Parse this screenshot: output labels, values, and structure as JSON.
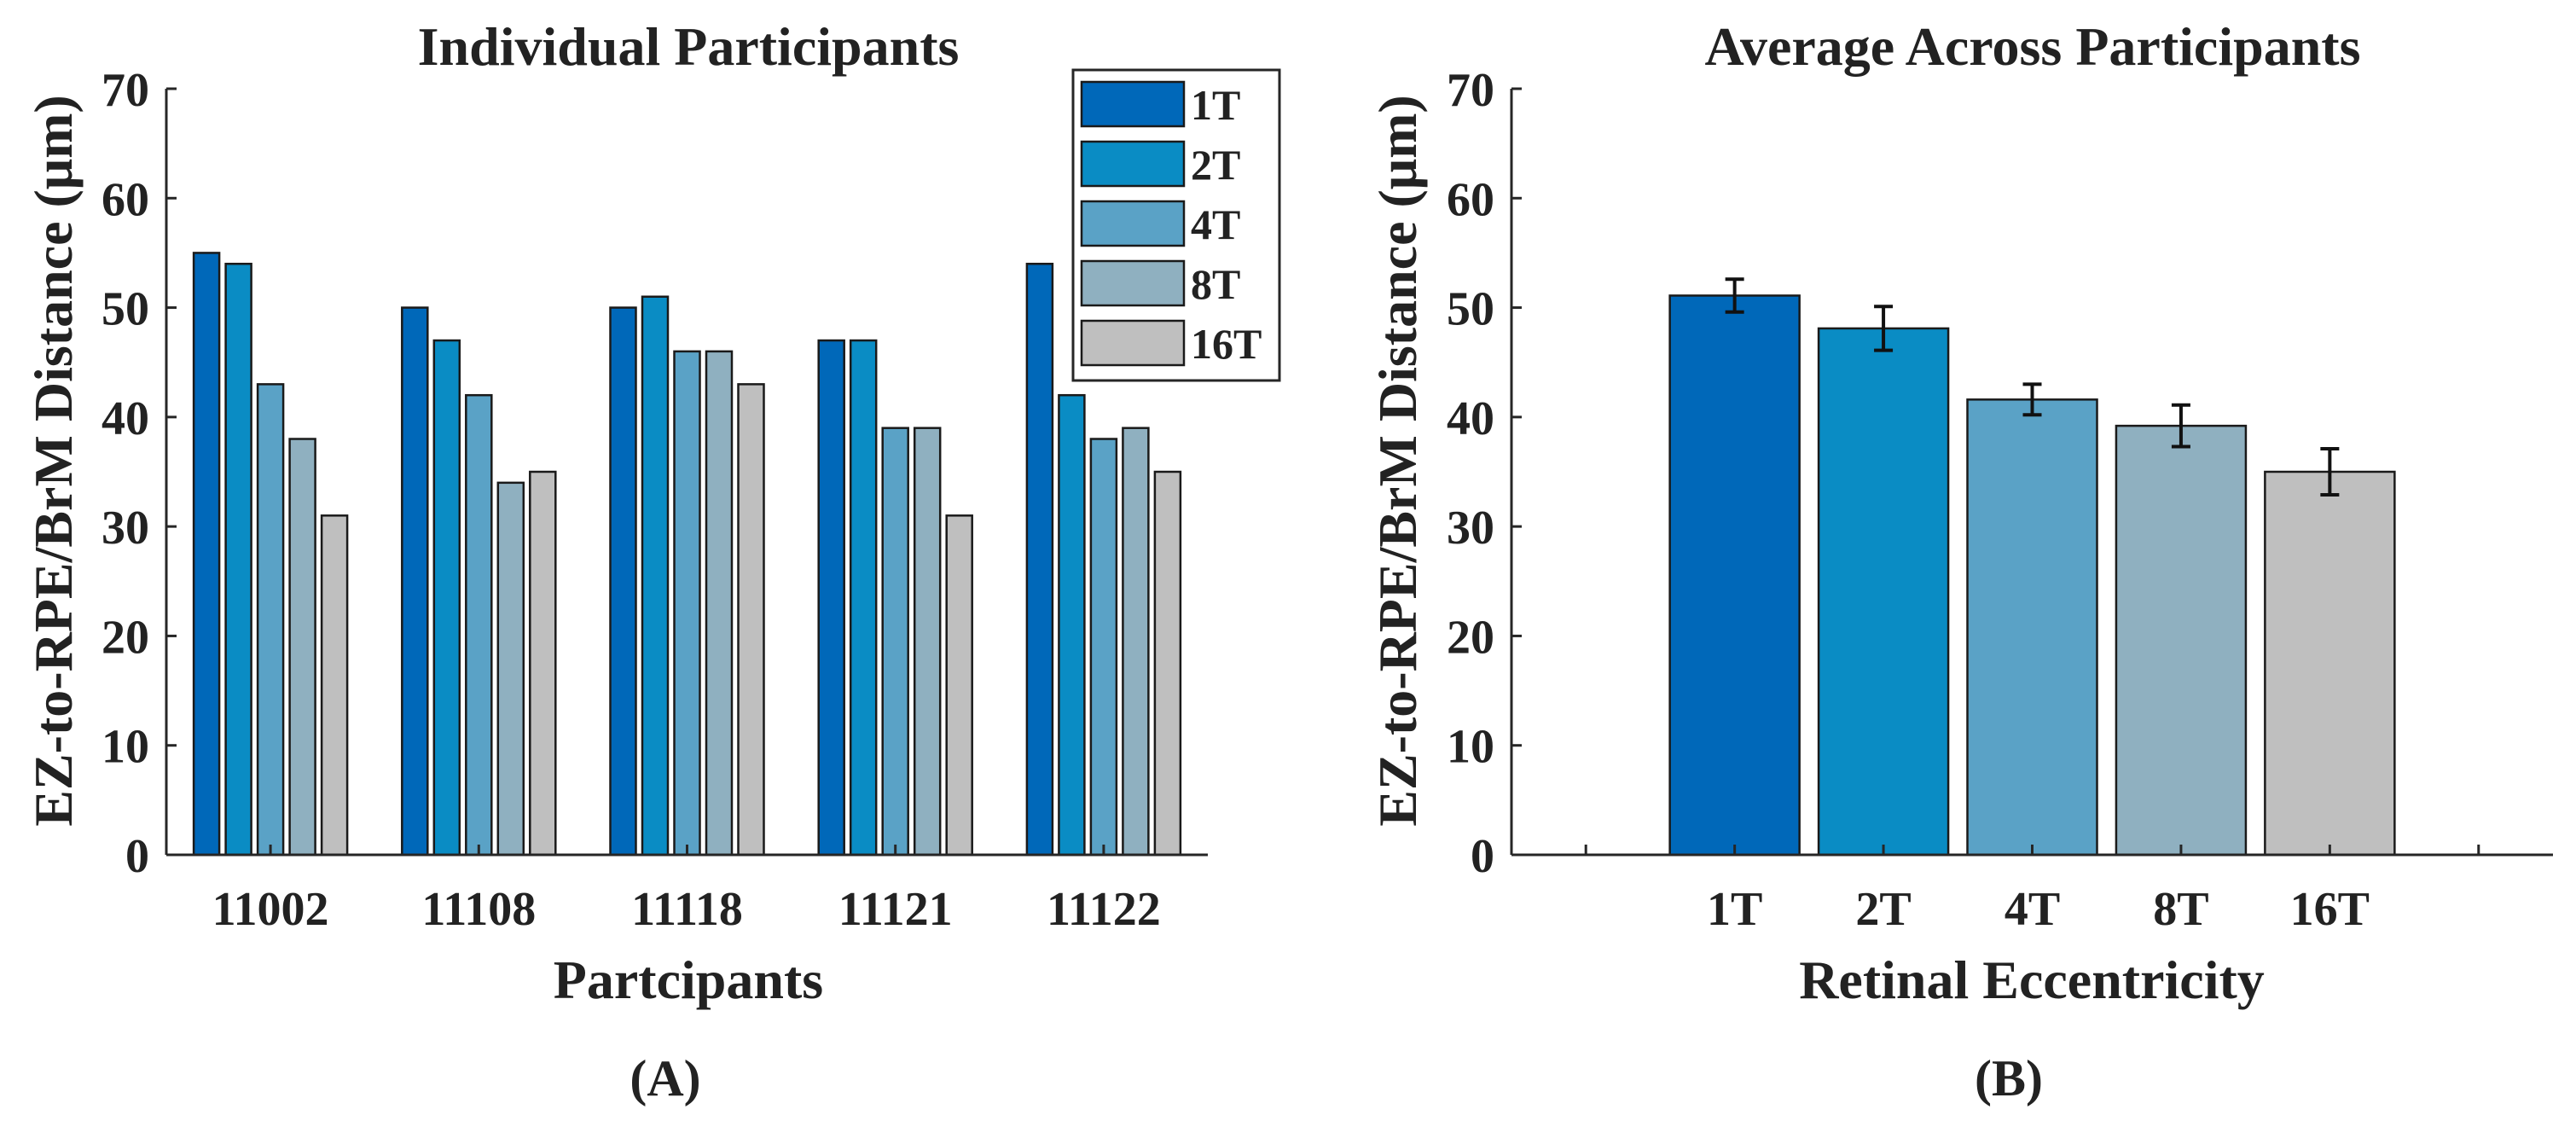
{
  "chart_data": [
    {
      "type": "bar",
      "panel_label": "(A)",
      "title": "Individual Participants",
      "xlabel": "Partcipants",
      "ylabel": "EZ-to-RPE/BrM Distance (μm)",
      "ylim": [
        0,
        70
      ],
      "yticks": [
        "0",
        "10",
        "20",
        "30",
        "40",
        "50",
        "60",
        "70"
      ],
      "categories": [
        "11002",
        "11108",
        "11118",
        "11121",
        "11122"
      ],
      "series": [
        {
          "name": "1T",
          "color": "#0068B9",
          "values": [
            55,
            50,
            50,
            47,
            54
          ]
        },
        {
          "name": "2T",
          "color": "#0A8CC4",
          "values": [
            54,
            47,
            51,
            47,
            42
          ]
        },
        {
          "name": "4T",
          "color": "#5AA2C6",
          "values": [
            43,
            42,
            46,
            39,
            38
          ]
        },
        {
          "name": "8T",
          "color": "#8FB0C0",
          "values": [
            38,
            34,
            46,
            39,
            39
          ]
        },
        {
          "name": "16T",
          "color": "#BFBFBF",
          "values": [
            31,
            35,
            43,
            31,
            35
          ]
        }
      ],
      "legend": "top-right",
      "grid": false
    },
    {
      "type": "bar",
      "panel_label": "(B)",
      "title": "Average Across Participants",
      "xlabel": "Retinal Eccentricity",
      "ylabel": "EZ-to-RPE/BrM Distance (μm)",
      "ylim": [
        0,
        70
      ],
      "yticks": [
        "0",
        "10",
        "20",
        "30",
        "40",
        "50",
        "60",
        "70"
      ],
      "categories": [
        "1T",
        "2T",
        "4T",
        "8T",
        "16T"
      ],
      "values": [
        51.1,
        48.1,
        41.6,
        39.2,
        35.0
      ],
      "errors": [
        1.5,
        2.0,
        1.4,
        1.9,
        2.1
      ],
      "colors": [
        "#0068B9",
        "#0A8CC4",
        "#5AA2C6",
        "#8FB0C0",
        "#BFBFBF"
      ],
      "grid": false
    }
  ]
}
